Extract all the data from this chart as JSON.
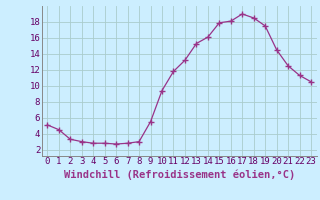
{
  "x": [
    0,
    1,
    2,
    3,
    4,
    5,
    6,
    7,
    8,
    9,
    10,
    11,
    12,
    13,
    14,
    15,
    16,
    17,
    18,
    19,
    20,
    21,
    22,
    23
  ],
  "y": [
    5.1,
    4.5,
    3.3,
    3.0,
    2.8,
    2.8,
    2.7,
    2.8,
    3.0,
    5.5,
    9.4,
    11.8,
    13.2,
    15.3,
    16.1,
    17.9,
    18.1,
    19.0,
    18.5,
    17.5,
    14.5,
    12.5,
    11.3,
    10.5
  ],
  "line_color": "#993388",
  "marker": "+",
  "marker_size": 4,
  "bg_color": "#cceeff",
  "grid_color": "#aacccc",
  "xlabel": "Windchill (Refroidissement éolien,°C)",
  "xlabel_fontsize": 7.5,
  "tick_fontsize": 6.5,
  "yticks": [
    2,
    4,
    6,
    8,
    10,
    12,
    14,
    16,
    18
  ],
  "ylim": [
    1.2,
    20.0
  ],
  "xlim": [
    -0.5,
    23.5
  ]
}
